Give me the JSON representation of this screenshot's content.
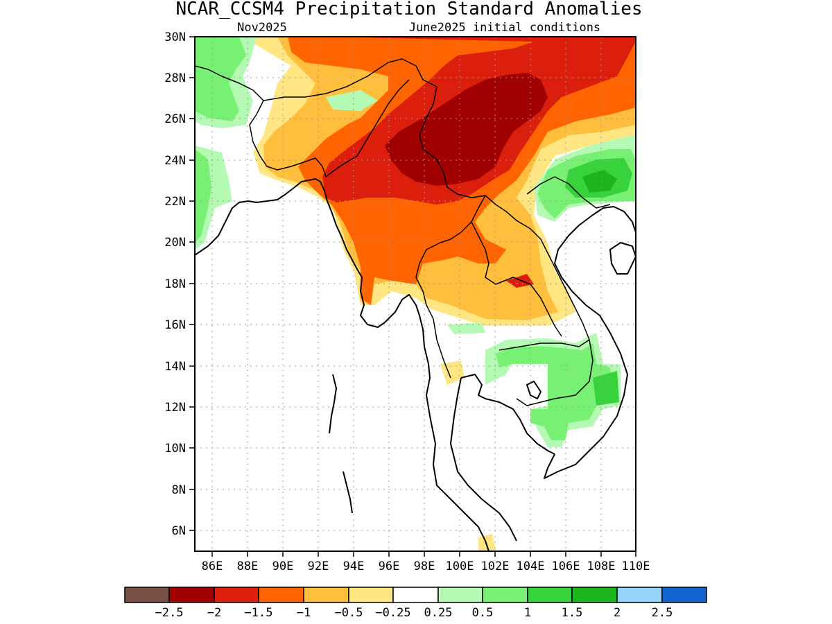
{
  "title": "NCAR_CCSM4 Precipitation Standard Anomalies",
  "subtitle_left": "Nov2025",
  "subtitle_right": "June2025 initial conditions",
  "lat_labels": [
    "30N",
    "28N",
    "26N",
    "24N",
    "22N",
    "20N",
    "18N",
    "16N",
    "14N",
    "12N",
    "10N",
    "8N",
    "6N"
  ],
  "lon_labels": [
    "86E",
    "88E",
    "90E",
    "92E",
    "94E",
    "96E",
    "98E",
    "100E",
    "102E",
    "104E",
    "106E",
    "108E",
    "110E"
  ],
  "colorbar": {
    "colors": [
      "#7a5046",
      "#a00000",
      "#dc1e0c",
      "#ff6400",
      "#ffbe3c",
      "#ffe682",
      "#ffffff",
      "#b4fab4",
      "#78f073",
      "#37d23c",
      "#1eb41e",
      "#96d2fa",
      "#1464d2"
    ],
    "labels": [
      "−2.5",
      "−2",
      "−1.5",
      "−1",
      "−0.5",
      "−0.25",
      "0.25",
      "0.5",
      "1",
      "1.5",
      "2",
      "2.5"
    ]
  }
}
